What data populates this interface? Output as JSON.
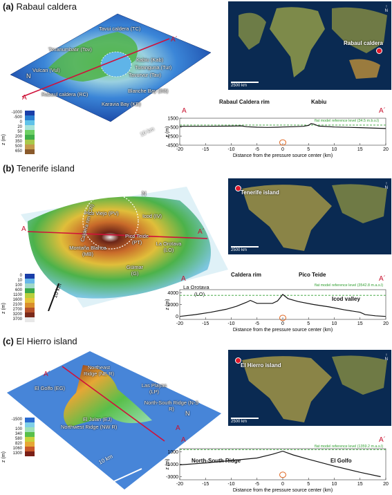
{
  "panels": [
    {
      "id": "a",
      "title_letter": "(a)",
      "title": "Rabaul caldera",
      "terrain_labels": [
        "Tavui caldera (TC)",
        "Tovanumbatir (Tov)",
        "Kabiu (Kab)",
        "Turanguna (Tur)",
        "Vulcan (Vul)",
        "Tavurvur (Tav)",
        "Rabaul caldera (RC)",
        "Blanche Bay (BB)",
        "Karavia Bay (KB)"
      ],
      "scale": "10 km",
      "north": "N",
      "A": "A",
      "A_prime": "A´",
      "colorbar": {
        "unit": "z (m)",
        "ticks": [
          "-1000",
          "-500",
          "0",
          "20",
          "50",
          "200",
          "350",
          "500",
          "650"
        ],
        "colors": [
          "#1a3ea8",
          "#2a7fd0",
          "#5fc2e8",
          "#a7e3d9",
          "#6dcf64",
          "#3fae48",
          "#a8c94a",
          "#c49a4b",
          "#8a5a2b"
        ]
      },
      "map": {
        "label": "Rabaul caldera",
        "scale": "2500 km",
        "north": "N"
      },
      "profile": {
        "labels": [
          "Rabaul Caldera rim",
          "Kabiu"
        ],
        "ref": "flat model reference level (34.5 m.b.s.l)",
        "yticks": [
          "1500",
          "-500",
          "-2500",
          "-4500"
        ],
        "zunit": "z (m)"
      }
    },
    {
      "id": "b",
      "title_letter": "(b)",
      "title": "Tenerife island",
      "terrain_labels": [
        "Pico Viejo (PV)",
        "Caldera rim (CR)",
        "Icod (IV)",
        "Pico Teide (PT)",
        "Montaña Blanca (MB)",
        "La Orotava (LO)",
        "Güimar (G)"
      ],
      "scale": "10 km",
      "north": "N",
      "A": "A",
      "A_prime": "A´",
      "colorbar": {
        "unit": "z (m)",
        "ticks": [
          "0",
          "10",
          "100",
          "600",
          "1100",
          "1600",
          "2100",
          "2700",
          "3200",
          "3700"
        ],
        "colors": [
          "#1a3ea8",
          "#66b7e8",
          "#9fd8c9",
          "#3aa84a",
          "#b7cf3c",
          "#e6c23a",
          "#d98f2c",
          "#b6512a",
          "#7a2a1b",
          "#e8e8e8"
        ]
      },
      "map": {
        "label": "Tenerife island",
        "scale": "2500 km",
        "north": "N"
      },
      "profile": {
        "labels": [
          "Caldera rim",
          "Pico Teide",
          "La Orotava",
          "(LO)",
          "Icod valley"
        ],
        "ref": "flat model reference level (3542.8 m.a.s.l)",
        "yticks": [
          "4000",
          "2000",
          "0"
        ],
        "zunit": "z (m)"
      }
    },
    {
      "id": "c",
      "title_letter": "(c)",
      "title": "El Hierro island",
      "terrain_labels": [
        "Northeast Ridge (NE R)",
        "Las Playas (LP)",
        "El Golfo (EG)",
        "North-South Ridge (N-S R)",
        "El Julan (EJ)",
        "Northwest Ridge (NW R)"
      ],
      "scale": "10 km",
      "north": "N",
      "A": "A",
      "A_prime": "A´",
      "colorbar": {
        "unit": "z (m)",
        "ticks": [
          "-1500",
          "0",
          "100",
          "340",
          "580",
          "820",
          "1060",
          "1300"
        ],
        "colors": [
          "#2a6bd0",
          "#7fcfe8",
          "#9ee0b9",
          "#58bf4a",
          "#c8d23c",
          "#e6a735",
          "#c9582a",
          "#7a1f17"
        ]
      },
      "map": {
        "label": "El Hierro island",
        "scale": "2500 km",
        "north": "N"
      },
      "profile": {
        "labels": [
          "North-South Ridge",
          "El Golfo"
        ],
        "ref": "flat model reference level (1359.2 m.a.s.l)",
        "yticks": [
          "1000",
          "-1000",
          "-3000"
        ],
        "zunit": "z (m)"
      }
    }
  ],
  "xaxis": {
    "ticks": [
      "-20",
      "-15",
      "-10",
      "-5",
      "0",
      "5",
      "10",
      "15",
      "20"
    ],
    "label": "Distance from the pressure source center (km)"
  },
  "chart_data": [
    {
      "type": "line",
      "title": "",
      "xlabel": "Distance from the pressure source center (km)",
      "ylabel": "z (m)",
      "xlim": [
        -20,
        20
      ],
      "ylim": [
        -4500,
        1500
      ],
      "series": [
        {
          "x": [
            -20,
            -15,
            -10,
            -8,
            -7,
            -5,
            -3,
            -1,
            0,
            2,
            4,
            5,
            5.5,
            6,
            7,
            10,
            15,
            20
          ],
          "y": [
            -300,
            -300,
            -250,
            -200,
            -400,
            -500,
            -550,
            -500,
            -450,
            -400,
            -300,
            -100,
            300,
            200,
            -250,
            -450,
            -600,
            -800
          ]
        }
      ],
      "reference_y": -34.5
    },
    {
      "type": "line",
      "title": "",
      "xlabel": "Distance from the pressure source center (km)",
      "ylabel": "z (m)",
      "xlim": [
        -20,
        20
      ],
      "ylim": [
        -500,
        4500
      ],
      "series": [
        {
          "x": [
            -20,
            -17,
            -14,
            -11,
            -9,
            -7,
            -6.3,
            -5,
            -2,
            -1,
            0,
            1,
            3,
            6,
            9,
            12,
            15,
            16,
            18,
            20
          ],
          "y": [
            0,
            300,
            700,
            1200,
            1700,
            2400,
            2700,
            2200,
            2200,
            2600,
            3700,
            3000,
            2500,
            2000,
            1600,
            1100,
            700,
            300,
            100,
            0
          ]
        }
      ],
      "reference_y": 3542.8
    },
    {
      "type": "line",
      "title": "",
      "xlabel": "Distance from the pressure source center (km)",
      "ylabel": "z (m)",
      "xlim": [
        -20,
        20
      ],
      "ylim": [
        -3500,
        1500
      ],
      "series": [
        {
          "x": [
            -20,
            -15,
            -10,
            -5,
            -2,
            0,
            2,
            5,
            10,
            15,
            19
          ],
          "y": [
            -1100,
            -800,
            -400,
            0,
            600,
            1100,
            500,
            -200,
            -1300,
            -2300,
            -3000
          ]
        }
      ],
      "reference_y": 1359.2
    }
  ]
}
